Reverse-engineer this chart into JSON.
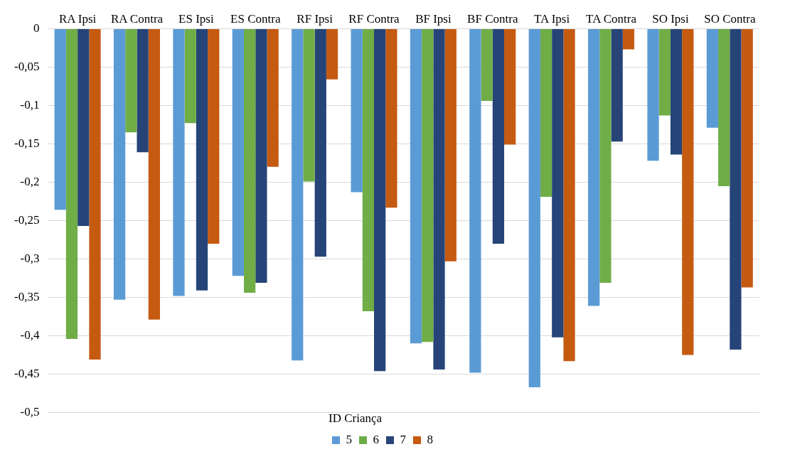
{
  "chart_data": {
    "type": "bar",
    "legend_title": "ID Criança",
    "categories": [
      "RA Ipsi",
      "RA Contra",
      "ES Ipsi",
      "ES Contra",
      "RF Ipsi",
      "RF Contra",
      "BF Ipsi",
      "BF Contra",
      "TA Ipsi",
      "TA Contra",
      "SO Ipsi",
      "SO Contra"
    ],
    "series": [
      {
        "name": "5",
        "color": "#5b9bd5",
        "values": [
          -0.236,
          -0.353,
          -0.348,
          -0.322,
          -0.432,
          -0.213,
          -0.41,
          -0.448,
          -0.467,
          -0.361,
          -0.172,
          -0.129
        ]
      },
      {
        "name": "6",
        "color": "#70ad47",
        "values": [
          -0.404,
          -0.135,
          -0.123,
          -0.344,
          -0.199,
          -0.368,
          -0.408,
          -0.094,
          -0.219,
          -0.331,
          -0.113,
          -0.205
        ]
      },
      {
        "name": "7",
        "color": "#264478",
        "values": [
          -0.257,
          -0.161,
          -0.341,
          -0.331,
          -0.297,
          -0.446,
          -0.444,
          -0.28,
          -0.402,
          -0.147,
          -0.164,
          -0.418
        ]
      },
      {
        "name": "8",
        "color": "#c55a11",
        "values": [
          -0.431,
          -0.379,
          -0.28,
          -0.18,
          -0.066,
          -0.233,
          -0.303,
          -0.151,
          -0.433,
          -0.027,
          -0.425,
          -0.337
        ]
      }
    ],
    "ylim": [
      -0.5,
      0
    ],
    "yticks": [
      0,
      {
        "value": -0.05,
        "label": "-0,05"
      },
      {
        "value": -0.1,
        "label": "-0,1"
      },
      {
        "value": -0.15,
        "label": "-0,15"
      },
      {
        "value": -0.2,
        "label": "-0,2"
      },
      {
        "value": -0.25,
        "label": "-0,25"
      },
      {
        "value": -0.3,
        "label": "-0,3"
      },
      {
        "value": -0.35,
        "label": "-0,35"
      },
      {
        "value": -0.4,
        "label": "-0,4"
      },
      {
        "value": -0.45,
        "label": "-0,45"
      },
      {
        "value": -0.5,
        "label": "-0,5"
      }
    ],
    "grid": "y",
    "legend": "bottom"
  }
}
